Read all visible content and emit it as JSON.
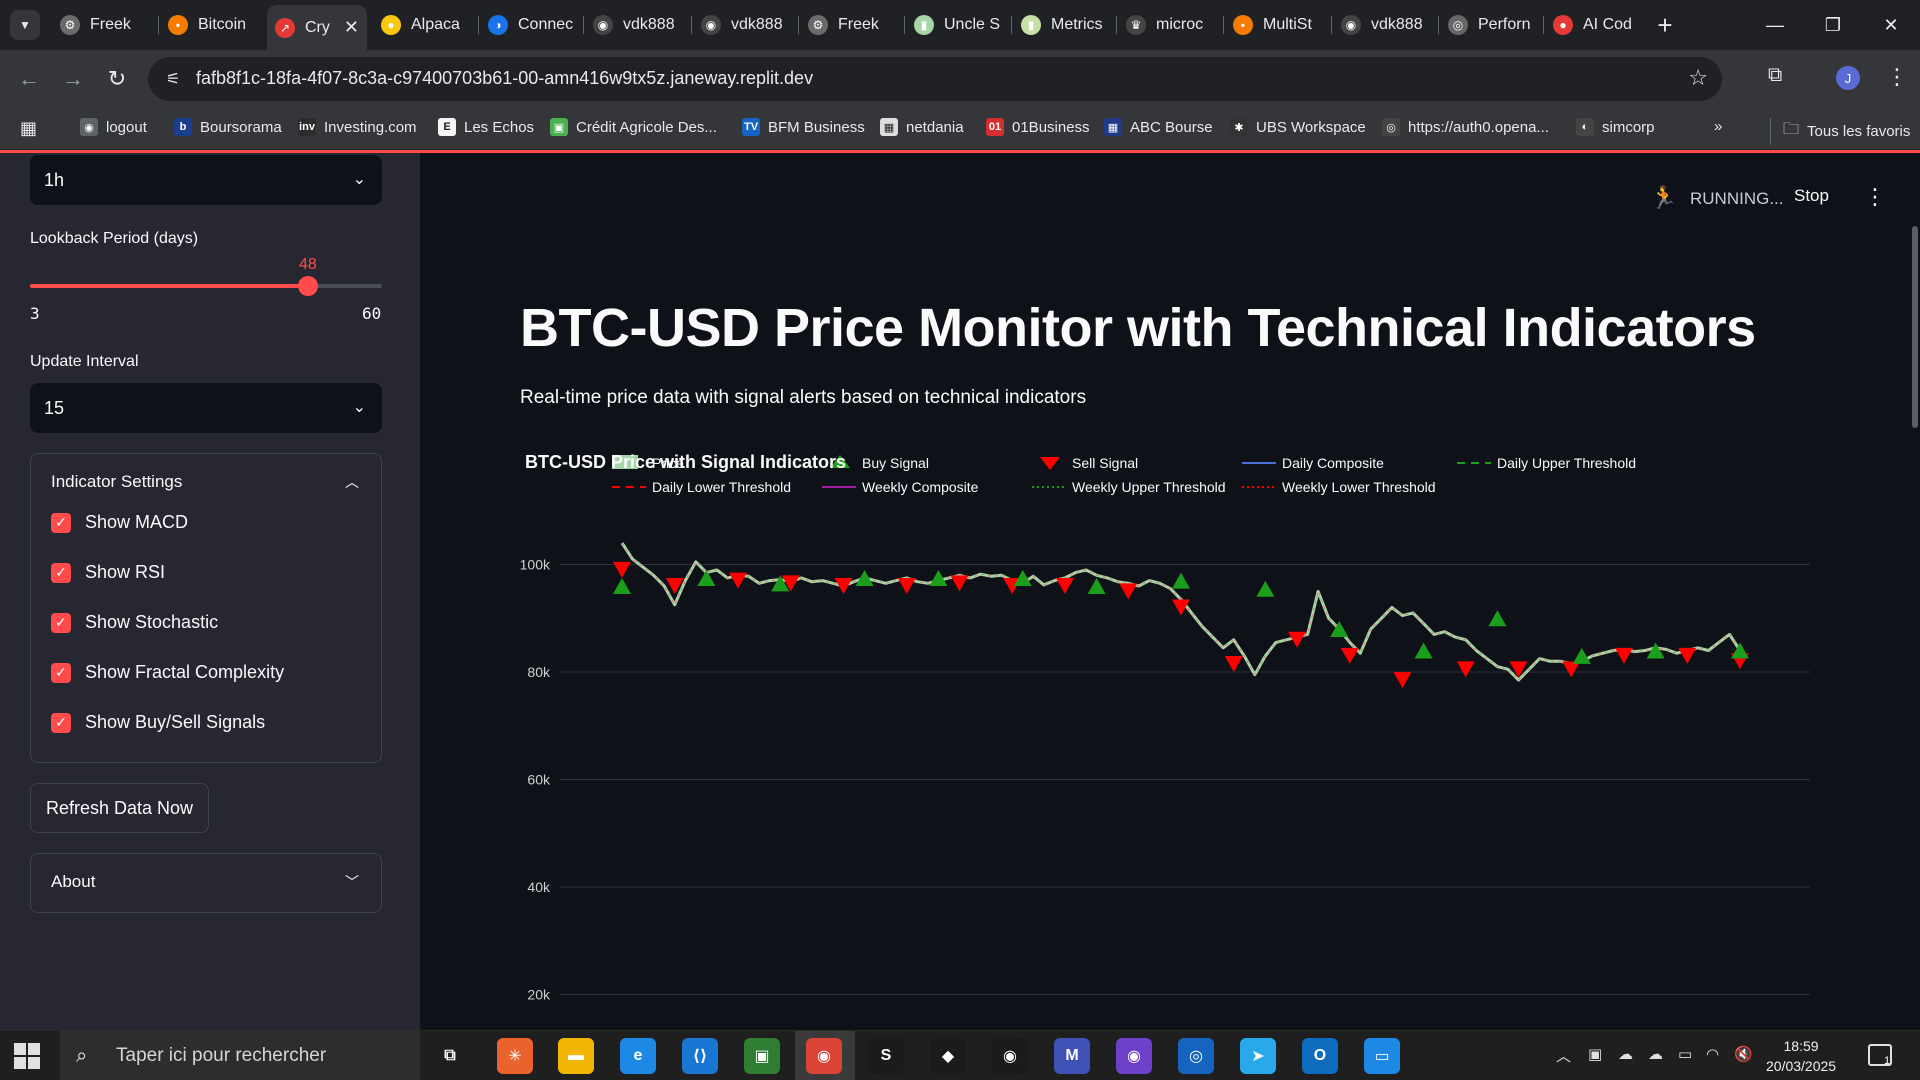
{
  "browser": {
    "tabs": [
      {
        "label": "Freek",
        "color": "#6b6b6b",
        "glyph": "⚙"
      },
      {
        "label": "Bitcoin",
        "color": "#f57c00",
        "glyph": "▪"
      },
      {
        "label": "Cry",
        "color": "#e53935",
        "glyph": "↗",
        "active": true
      },
      {
        "label": "Alpaca",
        "color": "#f9c80e",
        "glyph": "●"
      },
      {
        "label": "Connec",
        "color": "#1a73e8",
        "glyph": "◑"
      },
      {
        "label": "vdk888",
        "color": "#444444",
        "glyph": "◉"
      },
      {
        "label": "vdk888",
        "color": "#444444",
        "glyph": "◉"
      },
      {
        "label": "Freek",
        "color": "#6b6b6b",
        "glyph": "⚙"
      },
      {
        "label": "Uncle S",
        "color": "#a5d6a7",
        "glyph": "▮"
      },
      {
        "label": "Metrics",
        "color": "#c5e1a5",
        "glyph": "▮"
      },
      {
        "label": "microc",
        "color": "#444444",
        "glyph": "♛"
      },
      {
        "label": "MultiSt",
        "color": "#f57c00",
        "glyph": "▪"
      },
      {
        "label": "vdk888",
        "color": "#444444",
        "glyph": "◉"
      },
      {
        "label": "Perforn",
        "color": "#666666",
        "glyph": "◎"
      },
      {
        "label": "AI Cod",
        "color": "#e53935",
        "glyph": "●"
      }
    ],
    "new_tab": "+",
    "url": "fafb8f1c-18fa-4f07-8c3a-c97400703b61-00-amn416w9tx5z.janeway.replit.dev",
    "avatar_letter": "J",
    "bookmarks": [
      {
        "label": "logout",
        "color": "#5f6368",
        "glyph": "◉"
      },
      {
        "label": "Boursorama",
        "color": "#1a3e8c",
        "glyph": "b"
      },
      {
        "label": "Investing.com",
        "color": "#2c2c2c",
        "glyph": "inv"
      },
      {
        "label": "Les Echos",
        "color": "#f5f5f5",
        "glyph": "E"
      },
      {
        "label": "Crédit Agricole Des...",
        "color": "#4caf50",
        "glyph": "▣"
      },
      {
        "label": "BFM Business",
        "color": "#1565c0",
        "glyph": "TV"
      },
      {
        "label": "netdania",
        "color": "#dddddd",
        "glyph": "▦"
      },
      {
        "label": "01Business",
        "color": "#d32f2f",
        "glyph": "01"
      },
      {
        "label": "ABC Bourse",
        "color": "#1e3a8a",
        "glyph": "▦"
      },
      {
        "label": "UBS Workspace",
        "color": "#333333",
        "glyph": "✱"
      },
      {
        "label": "https://auth0.opena...",
        "color": "#444444",
        "glyph": "◎"
      },
      {
        "label": "simcorp",
        "color": "#444444",
        "glyph": "◐"
      }
    ],
    "bookmarks_overflow": "»",
    "all_bookmarks": "Tous les favoris"
  },
  "sidebar": {
    "timeframe_value": "1h",
    "lookback": {
      "label": "Lookback Period (days)",
      "value": 48,
      "min": 3,
      "max": 60
    },
    "update_interval": {
      "label": "Update Interval",
      "value": "15"
    },
    "indicator_settings": {
      "title": "Indicator Settings",
      "options": [
        {
          "label": "Show MACD",
          "checked": true
        },
        {
          "label": "Show RSI",
          "checked": true
        },
        {
          "label": "Show Stochastic",
          "checked": true
        },
        {
          "label": "Show Fractal Complexity",
          "checked": true
        },
        {
          "label": "Show Buy/Sell Signals",
          "checked": true
        }
      ]
    },
    "refresh_button": "Refresh Data Now",
    "about": "About"
  },
  "status": {
    "running": "RUNNING...",
    "stop": "Stop"
  },
  "main": {
    "title": "BTC-USD Price Monitor with Technical Indicators",
    "subtitle": "Real-time price data with signal alerts based on technical indicators"
  },
  "chart_data": {
    "type": "line",
    "title": "BTC-USD Price with Signal Indicators",
    "legend": [
      {
        "name": "Price",
        "kind": "candle",
        "color": "#a5d6a7"
      },
      {
        "name": "Buy Signal",
        "kind": "triangle-up",
        "color": "#1b9e1b"
      },
      {
        "name": "Sell Signal",
        "kind": "triangle-down",
        "color": "#ff0000"
      },
      {
        "name": "Daily Composite",
        "kind": "line",
        "color": "#4a6fd8"
      },
      {
        "name": "Daily Upper Threshold",
        "kind": "dash",
        "color": "#1b9e1b"
      },
      {
        "name": "Daily Lower Threshold",
        "kind": "dash",
        "color": "#ff0000"
      },
      {
        "name": "Weekly Composite",
        "kind": "line",
        "color": "#a020a0"
      },
      {
        "name": "Weekly Upper Threshold",
        "kind": "dot",
        "color": "#1b9e1b"
      },
      {
        "name": "Weekly Lower Threshold",
        "kind": "dot",
        "color": "#ff0000"
      }
    ],
    "y_ticks": [
      {
        "value": 100000,
        "label": "100k"
      },
      {
        "value": 80000,
        "label": "80k"
      },
      {
        "value": 60000,
        "label": "60k"
      },
      {
        "value": 40000,
        "label": "40k"
      },
      {
        "value": 20000,
        "label": "20k"
      }
    ],
    "ylim": [
      20000,
      110000
    ],
    "price": [
      104000,
      101000,
      99500,
      98000,
      96000,
      92500,
      97000,
      100500,
      98500,
      99000,
      97500,
      98000,
      97800,
      96500,
      97000,
      97200,
      96800,
      97500,
      96800,
      97000,
      96500,
      96000,
      96800,
      97500,
      97000,
      96500,
      97000,
      97500,
      96800,
      96500,
      97000,
      97500,
      98000,
      97500,
      98200,
      97800,
      98000,
      97000,
      96500,
      97800,
      96200,
      97000,
      97500,
      98500,
      99000,
      98000,
      97500,
      96800,
      96500,
      96000,
      97000,
      96500,
      95500,
      93500,
      91000,
      88500,
      86500,
      84500,
      86000,
      83000,
      79500,
      83000,
      85500,
      86000,
      86500,
      87000,
      95000,
      90000,
      88000,
      85500,
      83500,
      88000,
      90000,
      92000,
      90500,
      91000,
      89000,
      87000,
      87500,
      86500,
      86000,
      84000,
      82500,
      81000,
      80500,
      78500,
      80500,
      82500,
      82000,
      82000,
      81500,
      82000,
      83000,
      83500,
      84000,
      84200,
      83800,
      84000,
      84500,
      84200,
      83500,
      84000,
      84500,
      84000,
      85500,
      87000,
      84000
    ],
    "buy_signals": [
      96000,
      97500,
      96500,
      97500,
      97500,
      97500,
      96000,
      97000,
      95500,
      88000,
      84000,
      90000,
      83000,
      84000,
      84000
    ],
    "sell_signals": [
      99000,
      96000,
      97000,
      96500,
      96000,
      96000,
      96500,
      96000,
      96000,
      95000,
      92000,
      81500,
      86000,
      83000,
      78500,
      80500,
      80500,
      80500,
      83000,
      83000,
      82000
    ]
  }
}
